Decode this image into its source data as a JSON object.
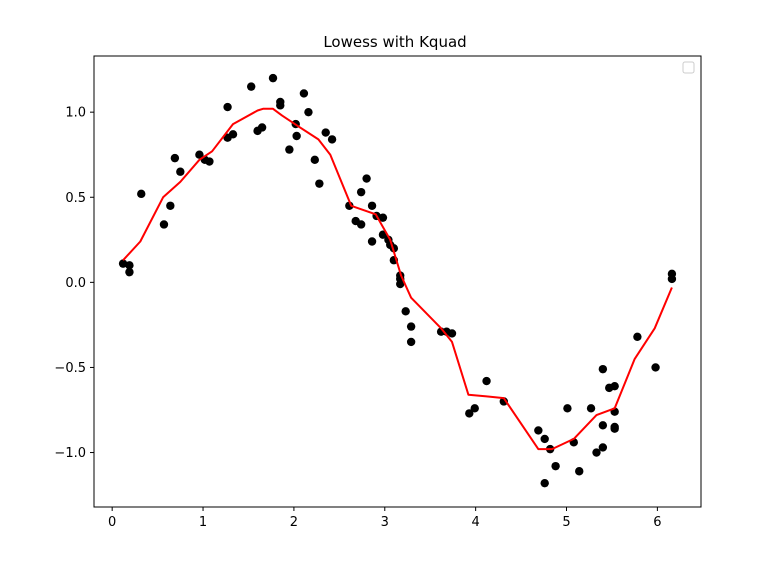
{
  "chart_data": {
    "type": "scatter",
    "title": "Lowess with Kquad",
    "xlabel": "",
    "ylabel": "",
    "xlim": [
      -0.2,
      6.48
    ],
    "ylim": [
      -1.32,
      1.33
    ],
    "x_ticks": [
      0,
      1,
      2,
      3,
      4,
      5,
      6
    ],
    "y_ticks": [
      -1.0,
      -0.5,
      0.0,
      0.5,
      1.0
    ],
    "x_tick_labels": [
      "0",
      "1",
      "2",
      "3",
      "4",
      "5",
      "6"
    ],
    "y_tick_labels": [
      "−1.0",
      "−0.5",
      "0.0",
      "0.5",
      "1.0"
    ],
    "grid": false,
    "legend": "top-right, empty box",
    "colors": {
      "points": "#000000",
      "line": "#ff0000",
      "axes": "#000000"
    },
    "series": [
      {
        "type": "scatter",
        "points": [
          [
            0.12,
            0.11
          ],
          [
            0.19,
            0.1
          ],
          [
            0.19,
            0.06
          ],
          [
            0.32,
            0.52
          ],
          [
            0.57,
            0.34
          ],
          [
            0.64,
            0.45
          ],
          [
            0.69,
            0.73
          ],
          [
            0.75,
            0.65
          ],
          [
            0.96,
            0.75
          ],
          [
            1.02,
            0.72
          ],
          [
            1.07,
            0.71
          ],
          [
            1.27,
            1.03
          ],
          [
            1.27,
            0.85
          ],
          [
            1.33,
            0.87
          ],
          [
            1.53,
            1.15
          ],
          [
            1.6,
            0.89
          ],
          [
            1.65,
            0.91
          ],
          [
            1.77,
            1.2
          ],
          [
            1.85,
            1.06
          ],
          [
            1.85,
            1.04
          ],
          [
            1.95,
            0.78
          ],
          [
            2.02,
            0.93
          ],
          [
            2.03,
            0.86
          ],
          [
            2.11,
            1.11
          ],
          [
            2.16,
            1.0
          ],
          [
            2.23,
            0.72
          ],
          [
            2.28,
            0.58
          ],
          [
            2.35,
            0.88
          ],
          [
            2.42,
            0.84
          ],
          [
            2.61,
            0.45
          ],
          [
            2.68,
            0.36
          ],
          [
            2.74,
            0.53
          ],
          [
            2.74,
            0.34
          ],
          [
            2.8,
            0.61
          ],
          [
            2.86,
            0.24
          ],
          [
            2.86,
            0.45
          ],
          [
            2.91,
            0.39
          ],
          [
            2.98,
            0.38
          ],
          [
            2.98,
            0.28
          ],
          [
            3.04,
            0.25
          ],
          [
            3.06,
            0.22
          ],
          [
            3.1,
            0.2
          ],
          [
            3.1,
            0.13
          ],
          [
            3.17,
            0.04
          ],
          [
            3.17,
            0.02
          ],
          [
            3.17,
            -0.01
          ],
          [
            3.23,
            -0.17
          ],
          [
            3.29,
            -0.26
          ],
          [
            3.29,
            -0.35
          ],
          [
            3.62,
            -0.29
          ],
          [
            3.68,
            -0.29
          ],
          [
            3.74,
            -0.3
          ],
          [
            3.93,
            -0.77
          ],
          [
            3.99,
            -0.74
          ],
          [
            4.12,
            -0.58
          ],
          [
            4.31,
            -0.7
          ],
          [
            4.69,
            -0.87
          ],
          [
            4.76,
            -1.18
          ],
          [
            4.76,
            -0.92
          ],
          [
            4.82,
            -0.98
          ],
          [
            4.88,
            -1.08
          ],
          [
            5.01,
            -0.74
          ],
          [
            5.08,
            -0.94
          ],
          [
            5.14,
            -1.11
          ],
          [
            5.27,
            -0.74
          ],
          [
            5.33,
            -1.0
          ],
          [
            5.4,
            -0.97
          ],
          [
            5.4,
            -0.84
          ],
          [
            5.4,
            -0.51
          ],
          [
            5.47,
            -0.62
          ],
          [
            5.53,
            -0.61
          ],
          [
            5.53,
            -0.76
          ],
          [
            5.53,
            -0.85
          ],
          [
            5.53,
            -0.86
          ],
          [
            5.78,
            -0.32
          ],
          [
            5.98,
            -0.5
          ],
          [
            6.16,
            0.02
          ],
          [
            6.16,
            0.05
          ]
        ]
      },
      {
        "type": "line",
        "points": [
          [
            0.12,
            0.13
          ],
          [
            0.31,
            0.24
          ],
          [
            0.56,
            0.5
          ],
          [
            0.75,
            0.59
          ],
          [
            0.96,
            0.72
          ],
          [
            1.1,
            0.77
          ],
          [
            1.33,
            0.93
          ],
          [
            1.6,
            1.01
          ],
          [
            1.66,
            1.02
          ],
          [
            1.77,
            1.02
          ],
          [
            1.87,
            0.98
          ],
          [
            2.04,
            0.92
          ],
          [
            2.27,
            0.84
          ],
          [
            2.4,
            0.75
          ],
          [
            2.63,
            0.45
          ],
          [
            2.9,
            0.4
          ],
          [
            3.06,
            0.25
          ],
          [
            3.18,
            0.04
          ],
          [
            3.29,
            -0.09
          ],
          [
            3.62,
            -0.27
          ],
          [
            3.74,
            -0.35
          ],
          [
            3.92,
            -0.66
          ],
          [
            4.12,
            -0.67
          ],
          [
            4.31,
            -0.68
          ],
          [
            4.69,
            -0.98
          ],
          [
            4.84,
            -0.98
          ],
          [
            5.08,
            -0.92
          ],
          [
            5.33,
            -0.78
          ],
          [
            5.53,
            -0.74
          ],
          [
            5.75,
            -0.45
          ],
          [
            5.97,
            -0.27
          ],
          [
            6.16,
            -0.03
          ]
        ]
      }
    ]
  }
}
